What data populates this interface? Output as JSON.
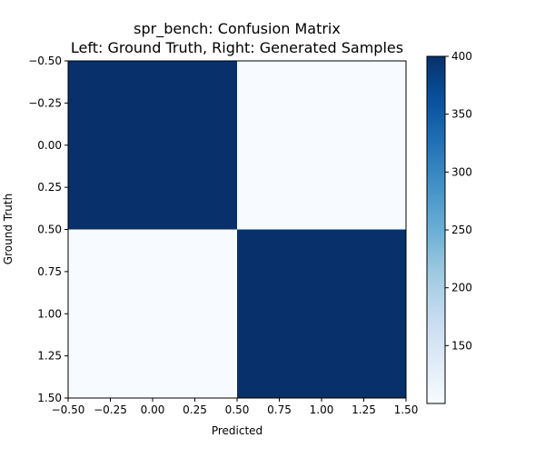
{
  "chart_data": {
    "type": "heatmap",
    "title": "spr_bench: Confusion Matrix",
    "subtitle": "Left: Ground Truth, Right: Generated Samples",
    "xlabel": "Predicted",
    "ylabel": "Ground Truth",
    "xlim": [
      -0.5,
      1.5
    ],
    "ylim": [
      1.5,
      -0.5
    ],
    "x_ticks": [
      -0.5,
      -0.25,
      0.0,
      0.25,
      0.5,
      0.75,
      1.0,
      1.25,
      1.5
    ],
    "y_ticks": [
      -0.5,
      -0.25,
      0.0,
      0.25,
      0.5,
      0.75,
      1.0,
      1.25,
      1.5
    ],
    "x_tick_labels": [
      "−0.50",
      "−0.25",
      "0.00",
      "0.25",
      "0.50",
      "0.75",
      "1.00",
      "1.25",
      "1.50"
    ],
    "y_tick_labels": [
      "−0.50",
      "−0.25",
      "0.00",
      "0.25",
      "0.50",
      "0.75",
      "1.00",
      "1.25",
      "1.50"
    ],
    "matrix": [
      [
        400,
        100
      ],
      [
        100,
        400
      ]
    ],
    "colormap": "Blues",
    "colormap_low": "#f7fbff",
    "colormap_high": "#08306b",
    "colorbar": {
      "vmin": 100,
      "vmax": 400,
      "ticks": [
        150,
        200,
        250,
        300,
        350,
        400
      ],
      "tick_labels": [
        "150",
        "200",
        "250",
        "300",
        "350",
        "400"
      ]
    },
    "grid": false
  }
}
